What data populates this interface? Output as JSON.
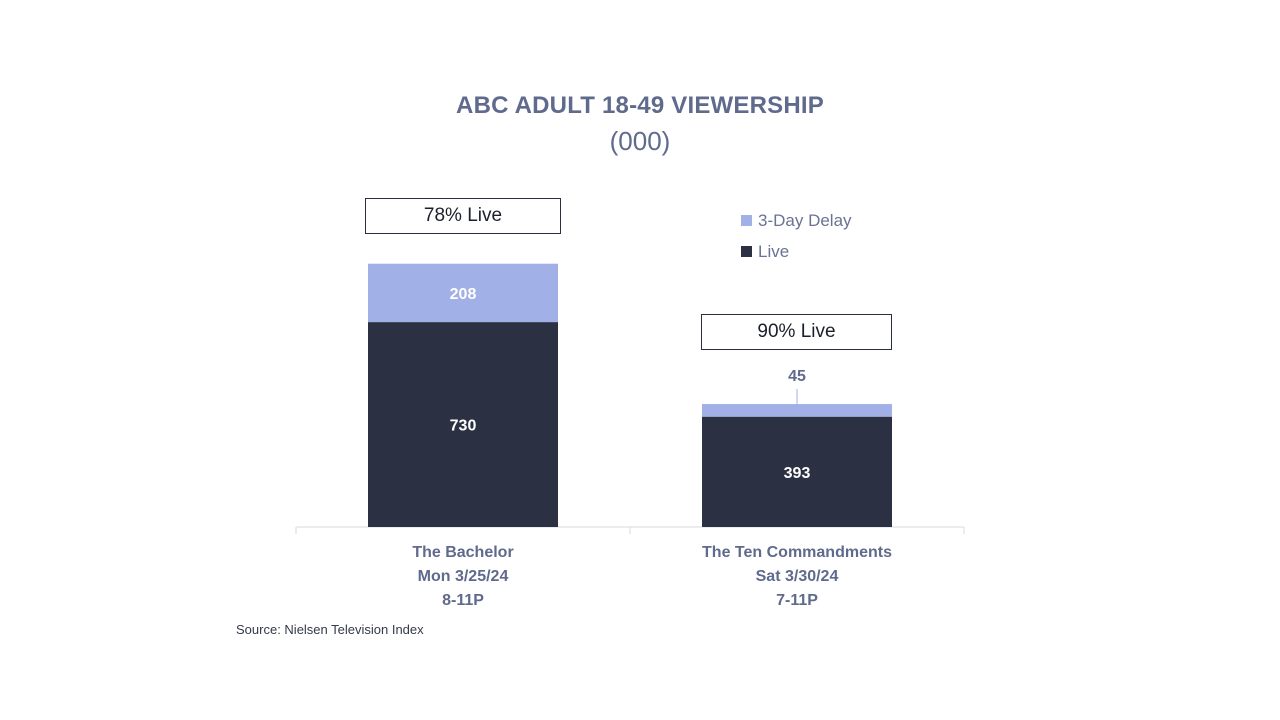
{
  "chart_data": {
    "type": "bar",
    "stacked": true,
    "title": "ABC ADULT 18-49 VIEWERSHIP",
    "subtitle": "(000)",
    "categories": [
      {
        "name": "The Bachelor",
        "date": "Mon 3/25/24",
        "time": "8-11P"
      },
      {
        "name": "The Ten Commandments",
        "date": "Sat 3/30/24",
        "time": "7-11P"
      }
    ],
    "series": [
      {
        "name": "Live",
        "values": [
          730,
          393
        ],
        "color": "#2b3042"
      },
      {
        "name": "3-Day Delay",
        "values": [
          208,
          45
        ],
        "color": "#a1b0e6"
      }
    ],
    "annotations": [
      "78% Live",
      "90% Live"
    ],
    "legend": [
      {
        "label": "3-Day Delay",
        "color": "#a1b0e6"
      },
      {
        "label": "Live",
        "color": "#2b3042"
      }
    ],
    "ylim": [
      0,
      1000
    ],
    "source": "Source: Nielsen Television Index"
  }
}
